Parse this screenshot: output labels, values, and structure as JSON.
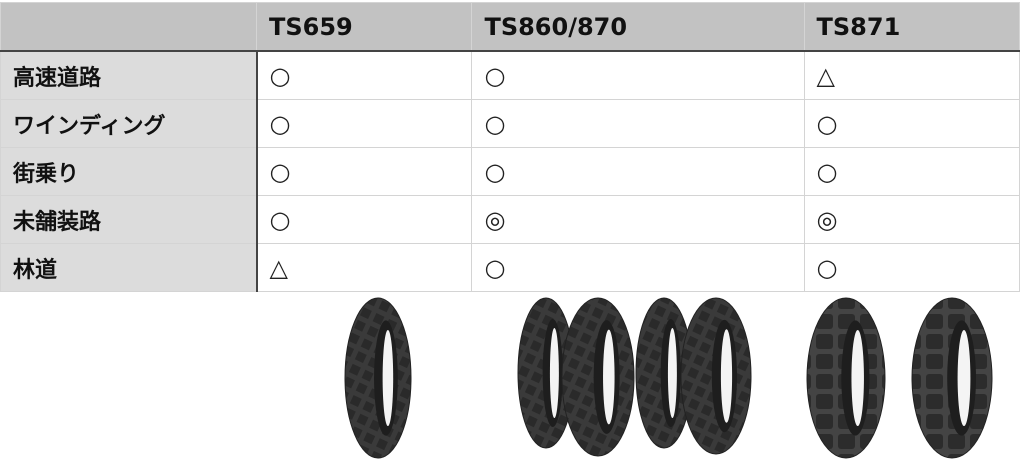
{
  "table": {
    "columns": [
      "",
      "TS659",
      "TS860/870",
      "TS871"
    ],
    "rows": [
      {
        "label": "高速道路",
        "values": [
          "○",
          "○",
          "△"
        ]
      },
      {
        "label": "ワインディング",
        "values": [
          "○",
          "○",
          "○"
        ]
      },
      {
        "label": "街乗り",
        "values": [
          "○",
          "○",
          "○"
        ]
      },
      {
        "label": "未舗装路",
        "values": [
          "○",
          "◎",
          "◎"
        ]
      },
      {
        "label": "林道",
        "values": [
          "△",
          "○",
          "○"
        ]
      }
    ]
  },
  "images": [
    "tire-ts659",
    "tire-ts860-870",
    "tire-ts871"
  ]
}
